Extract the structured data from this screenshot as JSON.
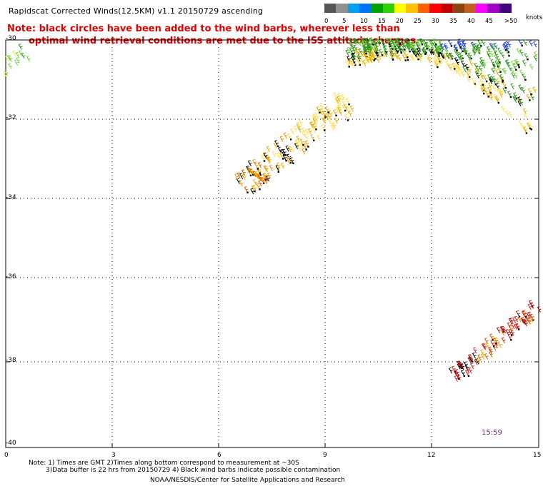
{
  "title": "Rapidscat Corrected Winds(12.5KM) v1.1 20150729 ascending",
  "notes": [
    "Note: black circles have been added to the wind barbs, wherever less than",
    "optimal wind retrieval conditions are met due to the ISS attitude changes."
  ],
  "footer": [
    "Note: 1) Times are GMT 2)Times along bottom correspond to measurement at ~30S",
    "3)Data buffer is 22 hrs from 20150729 4) Black wind barbs indicate possible contamination",
    "NOAA/NESDIS/Center for Satellite Applications and Research"
  ],
  "legend": {
    "unit": "knots",
    "labels": [
      "0",
      "5",
      "10",
      "15",
      "20",
      "25",
      "30",
      "35",
      "40",
      "45",
      ">50"
    ],
    "colors": [
      "#555555",
      "#909090",
      "#00a0f0",
      "#0070ff",
      "#00a000",
      "#30d000",
      "#ffff00",
      "#ffc000",
      "#ff6000",
      "#ff0000",
      "#c00000",
      "#8b4513",
      "#c06020",
      "#ff00ff",
      "#a000c0",
      "#400080"
    ]
  },
  "axes": {
    "x_ticks": [
      "0",
      "3",
      "6",
      "9",
      "12",
      "15"
    ],
    "y_ticks": [
      "-30",
      "-32",
      "-34",
      "-36",
      "-38",
      "-40"
    ]
  },
  "time_label": "15:59",
  "wind_colors": {
    "lightgreen": "#7cd64a",
    "green": "#2e9a1a",
    "blue": "#2040e0",
    "yellow": "#ffe05a",
    "gold": "#e8b000",
    "orange": "#ff8c00",
    "darkorange": "#d06000",
    "red": "#e02020",
    "darkred": "#a01010",
    "black": "#000000"
  }
}
